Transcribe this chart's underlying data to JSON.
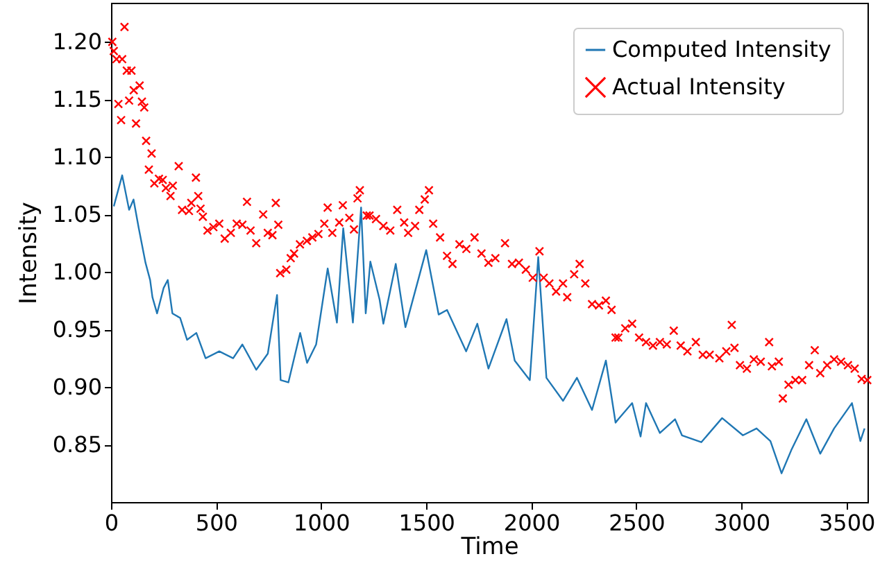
{
  "chart_data": {
    "type": "line",
    "xlabel": "Time",
    "ylabel": "Intensity",
    "xlim": [
      0,
      3600
    ],
    "xticks": [
      0,
      500,
      1000,
      1500,
      2000,
      2500,
      3000,
      3500
    ],
    "ylim": [
      0.8,
      1.234
    ],
    "yticks": [
      {
        "value": 0.85,
        "label": "0.85"
      },
      {
        "value": 0.9,
        "label": "0.90"
      },
      {
        "value": 0.95,
        "label": "0.95"
      },
      {
        "value": 1.0,
        "label": "1.00"
      },
      {
        "value": 1.05,
        "label": "1.05"
      },
      {
        "value": 1.1,
        "label": "1.10"
      },
      {
        "value": 1.15,
        "label": "1.15"
      },
      {
        "value": 1.2,
        "label": "1.20"
      }
    ],
    "grid": false,
    "legend": "top right",
    "series": [
      {
        "name": "Computed Intensity",
        "color": "#1f77b4",
        "marker": "none",
        "line_style": "solid",
        "x": [
          13,
          53,
          86,
          107,
          132,
          164,
          186,
          197,
          219,
          250,
          270,
          292,
          329,
          362,
          406,
          450,
          515,
          581,
          625,
          691,
          746,
          790,
          807,
          844,
          900,
          933,
          976,
          1031,
          1075,
          1105,
          1151,
          1190,
          1212,
          1234,
          1278,
          1296,
          1355,
          1401,
          1500,
          1559,
          1599,
          1690,
          1743,
          1796,
          1882,
          1921,
          1993,
          2033,
          2072,
          2151,
          2217,
          2289,
          2355,
          2401,
          2414,
          2480,
          2520,
          2546,
          2612,
          2684,
          2717,
          2809,
          2908,
          3007,
          3072,
          3138,
          3191,
          3237,
          3309,
          3375,
          3441,
          3526,
          3566,
          3586
        ],
        "values": [
          1.057,
          1.084,
          1.054,
          1.063,
          1.038,
          1.008,
          0.993,
          0.978,
          0.964,
          0.986,
          0.993,
          0.964,
          0.96,
          0.941,
          0.947,
          0.925,
          0.931,
          0.925,
          0.937,
          0.915,
          0.929,
          0.98,
          0.906,
          0.904,
          0.947,
          0.921,
          0.937,
          1.003,
          0.956,
          1.038,
          0.956,
          1.056,
          0.964,
          1.009,
          0.976,
          0.955,
          1.007,
          0.952,
          1.019,
          0.963,
          0.967,
          0.931,
          0.955,
          0.916,
          0.959,
          0.923,
          0.906,
          1.013,
          0.908,
          0.888,
          0.908,
          0.88,
          0.923,
          0.869,
          0.872,
          0.886,
          0.857,
          0.886,
          0.86,
          0.872,
          0.858,
          0.852,
          0.873,
          0.858,
          0.864,
          0.853,
          0.825,
          0.845,
          0.872,
          0.842,
          0.864,
          0.886,
          0.853,
          0.864
        ]
      },
      {
        "name": "Actual Intensity",
        "type": "scatter",
        "color": "#ff0000",
        "marker": "cross",
        "x": [
          6,
          13,
          26,
          35,
          48,
          53,
          64,
          75,
          86,
          97,
          108,
          119,
          136,
          147,
          158,
          167,
          180,
          193,
          206,
          228,
          246,
          261,
          283,
          294,
          322,
          338,
          371,
          382,
          404,
          415,
          426,
          437,
          459,
          487,
          515,
          541,
          570,
          598,
          625,
          647,
          664,
          691,
          724,
          746,
          768,
          784,
          796,
          805,
          834,
          855,
          871,
          899,
          932,
          958,
          987,
          1015,
          1031,
          1053,
          1086,
          1103,
          1134,
          1156,
          1173,
          1184,
          1217,
          1230,
          1261,
          1296,
          1329,
          1362,
          1395,
          1414,
          1447,
          1467,
          1493,
          1513,
          1533,
          1566,
          1599,
          1625,
          1658,
          1691,
          1730,
          1763,
          1796,
          1829,
          1875,
          1908,
          1941,
          1974,
          2007,
          2039,
          2059,
          2086,
          2118,
          2151,
          2171,
          2204,
          2230,
          2257,
          2289,
          2322,
          2355,
          2382,
          2401,
          2414,
          2447,
          2480,
          2513,
          2546,
          2579,
          2612,
          2645,
          2678,
          2711,
          2743,
          2783,
          2816,
          2849,
          2895,
          2928,
          2954,
          2967,
          2993,
          3026,
          3059,
          3092,
          3132,
          3145,
          3178,
          3197,
          3224,
          3257,
          3289,
          3322,
          3349,
          3375,
          3408,
          3441,
          3474,
          3507,
          3539,
          3572,
          3599
        ],
        "values": [
          1.2,
          1.192,
          1.185,
          1.146,
          1.132,
          1.185,
          1.213,
          1.175,
          1.149,
          1.175,
          1.158,
          1.129,
          1.162,
          1.148,
          1.143,
          1.114,
          1.089,
          1.103,
          1.077,
          1.081,
          1.08,
          1.073,
          1.066,
          1.075,
          1.092,
          1.054,
          1.053,
          1.06,
          1.082,
          1.066,
          1.055,
          1.048,
          1.036,
          1.039,
          1.042,
          1.029,
          1.034,
          1.042,
          1.041,
          1.061,
          1.036,
          1.025,
          1.05,
          1.034,
          1.032,
          1.06,
          1.041,
          0.999,
          1.002,
          1.012,
          1.016,
          1.024,
          1.027,
          1.03,
          1.033,
          1.042,
          1.056,
          1.034,
          1.043,
          1.058,
          1.047,
          1.037,
          1.064,
          1.071,
          1.049,
          1.049,
          1.046,
          1.04,
          1.036,
          1.054,
          1.043,
          1.034,
          1.04,
          1.054,
          1.063,
          1.071,
          1.042,
          1.03,
          1.014,
          1.007,
          1.024,
          1.02,
          1.03,
          1.016,
          1.008,
          1.012,
          1.025,
          1.007,
          1.008,
          1.002,
          0.995,
          1.018,
          0.995,
          0.99,
          0.983,
          0.99,
          0.978,
          0.998,
          1.007,
          0.99,
          0.972,
          0.971,
          0.975,
          0.967,
          0.943,
          0.943,
          0.951,
          0.955,
          0.943,
          0.939,
          0.936,
          0.939,
          0.937,
          0.949,
          0.936,
          0.931,
          0.939,
          0.928,
          0.928,
          0.925,
          0.931,
          0.954,
          0.934,
          0.919,
          0.916,
          0.924,
          0.922,
          0.939,
          0.918,
          0.922,
          0.89,
          0.902,
          0.906,
          0.906,
          0.919,
          0.932,
          0.912,
          0.919,
          0.924,
          0.922,
          0.919,
          0.916,
          0.907,
          0.906
        ]
      }
    ]
  }
}
